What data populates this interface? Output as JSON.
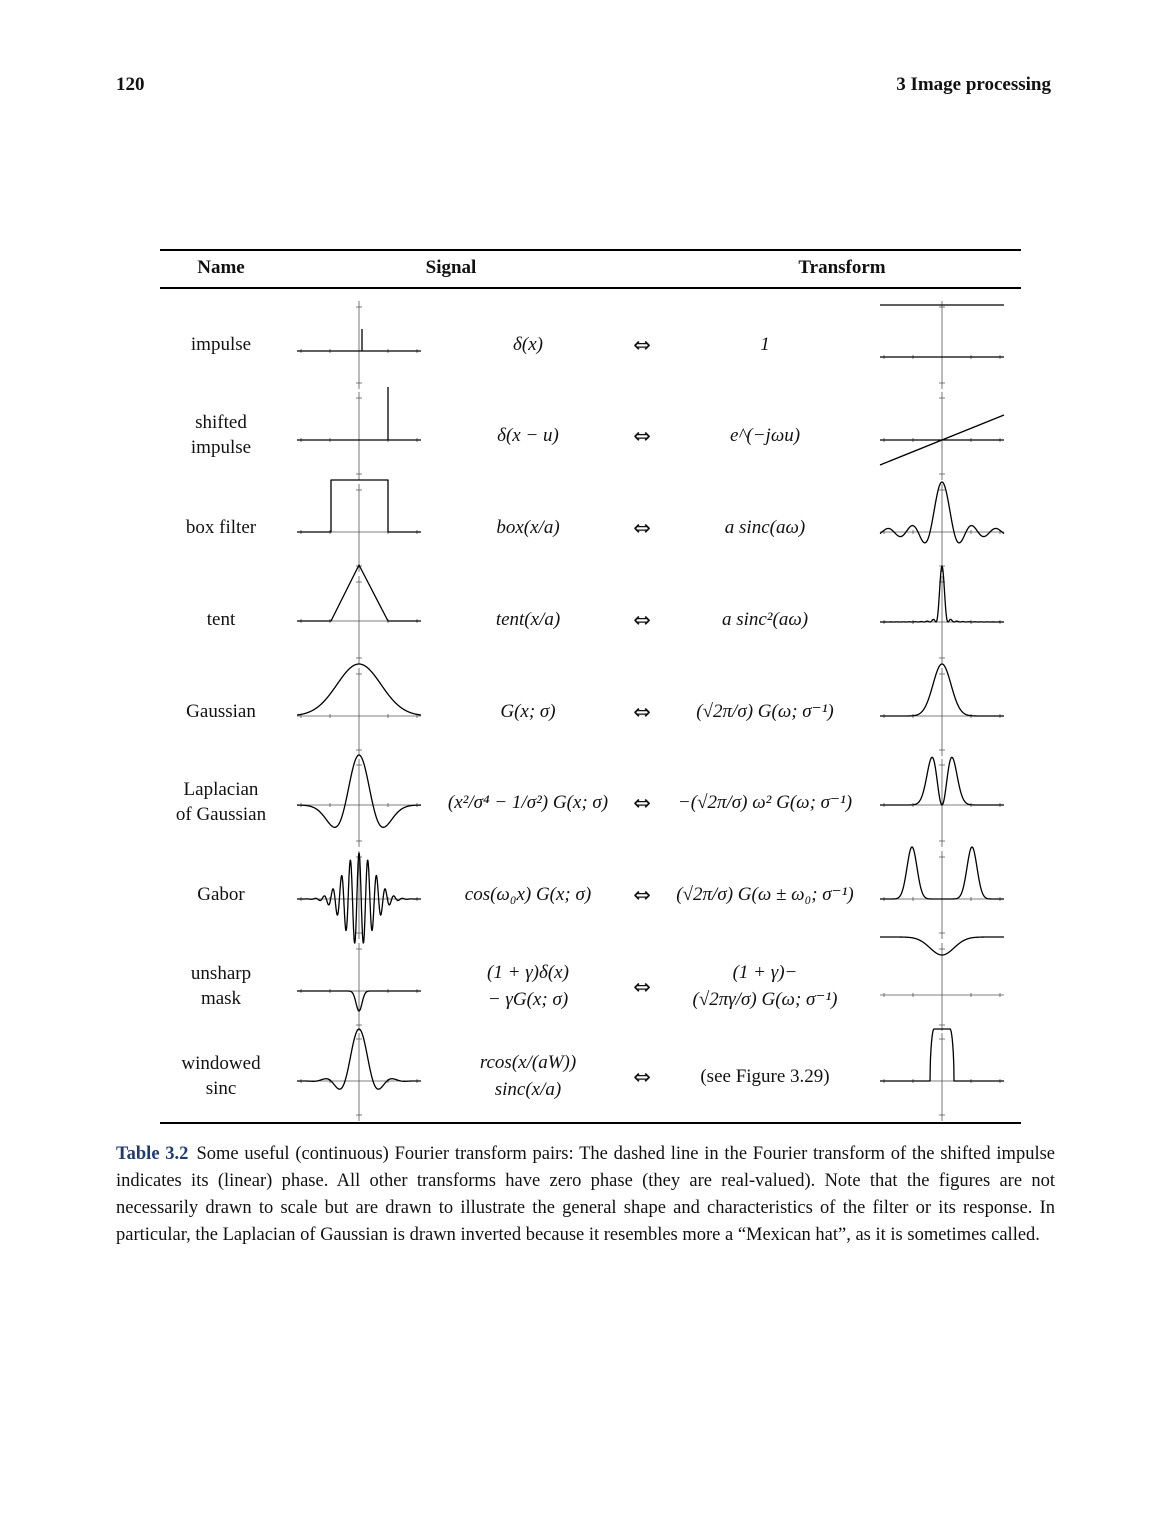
{
  "header": {
    "page_number": "120",
    "chapter": "3  Image processing"
  },
  "table": {
    "columns": {
      "name": "Name",
      "signal": "Signal",
      "transform": "Transform"
    },
    "rows": [
      {
        "name": "impulse",
        "signal": "δ(x)",
        "arrow": "⇔",
        "transform": "1",
        "signal_plot": "impulse",
        "transform_plot": "constant"
      },
      {
        "name": "shifted\nimpulse",
        "signal": "δ(x − u)",
        "arrow": "⇔",
        "transform": "e^(−jωu)",
        "signal_plot": "shifted-impulse",
        "transform_plot": "linear-phase"
      },
      {
        "name": "box filter",
        "signal": "box(x/a)",
        "arrow": "⇔",
        "transform": "a sinc(aω)",
        "signal_plot": "box",
        "transform_plot": "sinc"
      },
      {
        "name": "tent",
        "signal": "tent(x/a)",
        "arrow": "⇔",
        "transform": "a sinc²(aω)",
        "signal_plot": "tent",
        "transform_plot": "sinc-squared"
      },
      {
        "name": "Gaussian",
        "signal": "G(x; σ)",
        "arrow": "⇔",
        "transform": "(√2π/σ) G(ω; σ⁻¹)",
        "signal_plot": "gaussian",
        "transform_plot": "gaussian-narrow"
      },
      {
        "name": "Laplacian\nof Gaussian",
        "signal": "(x²/σ⁴ − 1/σ²) G(x; σ)",
        "arrow": "⇔",
        "transform": "−(√2π/σ) ω² G(ω; σ⁻¹)",
        "signal_plot": "mexican-hat",
        "transform_plot": "double-peak"
      },
      {
        "name": "Gabor",
        "signal": "cos(ω₀x) G(x; σ)",
        "arrow": "⇔",
        "transform": "(√2π/σ) G(ω ± ω₀; σ⁻¹)",
        "signal_plot": "gabor",
        "transform_plot": "two-gaussians"
      },
      {
        "name": "unsharp\nmask",
        "signal": "(1 + γ)δ(x)\n− γG(x; σ)",
        "arrow": "⇔",
        "transform": "(1 + γ)−\n(√2πγ/σ) G(ω; σ⁻¹)",
        "signal_plot": "unsharp",
        "transform_plot": "inverted-gaussian"
      },
      {
        "name": "windowed\nsinc",
        "signal": "rcos(x/(aW))\nsinc(x/a)",
        "arrow": "⇔",
        "transform": "(see Figure 3.29)",
        "signal_plot": "windowed-sinc",
        "transform_plot": "rounded-box"
      }
    ]
  },
  "caption": {
    "label": "Table 3.2",
    "text_before": "Some useful (continuous) Fourier transform pairs: The dashed line in the Fourier transform of the shifted impulse indicates its (linear) phase. All other transforms have zero phase (they are real-valued). Note that the figures are not necessarily drawn to scale but are drawn to illustrate the general shape and characteristics of the filter or its response. In particular, the Laplacian of Gaussian is drawn inverted because it resembles more a “Mexican hat”, as it is sometimes called.",
    "text_after": ""
  }
}
